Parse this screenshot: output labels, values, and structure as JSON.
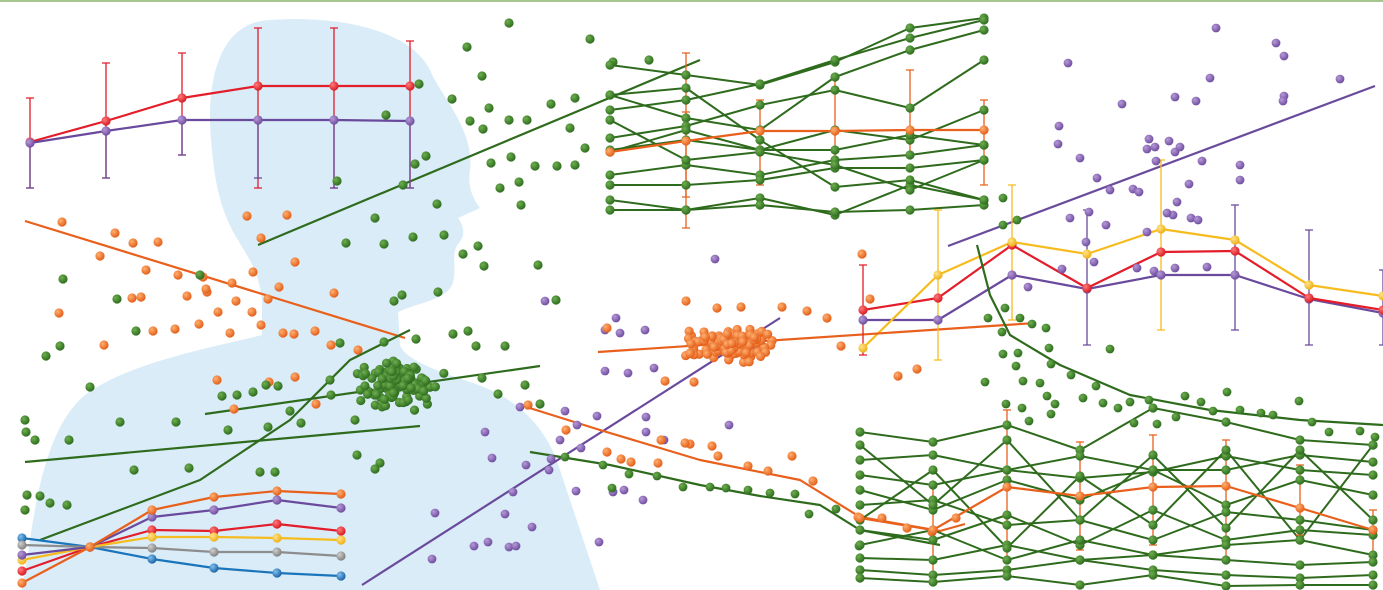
{
  "palette": {
    "top_border": "#a6c68d",
    "silhouette": "#d9ecf8",
    "green": "#2e6e1f",
    "green_line": "#2f6b1d",
    "orange": "#e8601c",
    "orange_light": "#f07f2a",
    "purple": "#7b55a8",
    "purple_line": "#6a4a9c",
    "red": "#e31d2a",
    "yellow": "#f6bc1f",
    "blue": "#1b75bb",
    "gray": "#8d8d8d"
  },
  "elements": {
    "silhouette": "human-head-and-shoulders-silhouette",
    "panels": [
      "line-chart-with-error-bars-top-left",
      "scatter-with-trend-line-orange",
      "scatter-with-trend-line-green",
      "multi-line-chart-bottom-left",
      "parallel-line-network-top-center",
      "scatter-with-trend-line-purple",
      "line-chart-with-error-bars-right",
      "orange-point-cluster-center",
      "parallel-line-network-bottom-right"
    ]
  }
}
